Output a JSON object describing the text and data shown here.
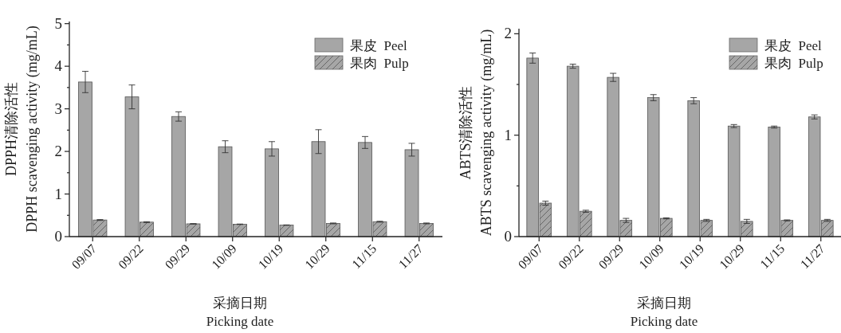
{
  "chart_data": [
    {
      "type": "bar",
      "xlabel": "采摘日期\nPicking date",
      "ylabel": "DPPH清除活性\nDPPH scavenging activity (mg/mL)",
      "categories": [
        "09/07",
        "09/22",
        "09/29",
        "10/09",
        "10/19",
        "10/29",
        "11/15",
        "11/27"
      ],
      "series": [
        {
          "name": "果皮  Peel",
          "color": "#a6a6a6",
          "values": [
            3.63,
            3.28,
            2.82,
            2.11,
            2.06,
            2.23,
            2.21,
            2.04
          ],
          "errors": [
            0.25,
            0.28,
            0.11,
            0.14,
            0.17,
            0.28,
            0.14,
            0.15
          ]
        },
        {
          "name": "果肉  Pulp",
          "color": "#a6a6a6",
          "values": [
            0.39,
            0.34,
            0.3,
            0.29,
            0.27,
            0.31,
            0.35,
            0.31
          ],
          "errors": [
            0.01,
            0.01,
            0.005,
            0.005,
            0.005,
            0.01,
            0.01,
            0.01
          ]
        }
      ],
      "ylim": [
        0,
        5.05
      ],
      "yticks": [
        0,
        {
          "value": 0.5,
          "label": null
        },
        1,
        {
          "value": 1.5,
          "label": null
        },
        2,
        {
          "value": 2.5,
          "label": null
        },
        3,
        {
          "value": 3.5,
          "label": null
        },
        4,
        {
          "value": 4.5,
          "label": null
        },
        5
      ],
      "legend": "top right",
      "grid": false
    },
    {
      "type": "bar",
      "xlabel": "采摘日期\nPicking date",
      "ylabel": "ABTS清除活性\nABTS scavenging activity (mg/mL)",
      "categories": [
        "09/07",
        "09/22",
        "09/29",
        "10/09",
        "10/19",
        "10/29",
        "11/15",
        "11/27"
      ],
      "series": [
        {
          "name": "果皮  Peel",
          "color": "#a6a6a6",
          "values": [
            1.76,
            1.68,
            1.57,
            1.37,
            1.34,
            1.09,
            1.08,
            1.18
          ],
          "errors": [
            0.05,
            0.02,
            0.04,
            0.03,
            0.03,
            0.015,
            0.01,
            0.02
          ]
        },
        {
          "name": "果肉  Pulp",
          "color": "#a6a6a6",
          "values": [
            0.33,
            0.25,
            0.16,
            0.18,
            0.16,
            0.15,
            0.16,
            0.16
          ],
          "errors": [
            0.02,
            0.01,
            0.02,
            0.005,
            0.01,
            0.02,
            0.005,
            0.01
          ]
        }
      ],
      "ylim": [
        0,
        2.05
      ],
      "yticks": [
        0,
        {
          "value": 0.5,
          "label": null
        },
        1,
        {
          "value": 1.5,
          "label": null
        },
        2
      ],
      "legend": "top right",
      "grid": false
    }
  ]
}
